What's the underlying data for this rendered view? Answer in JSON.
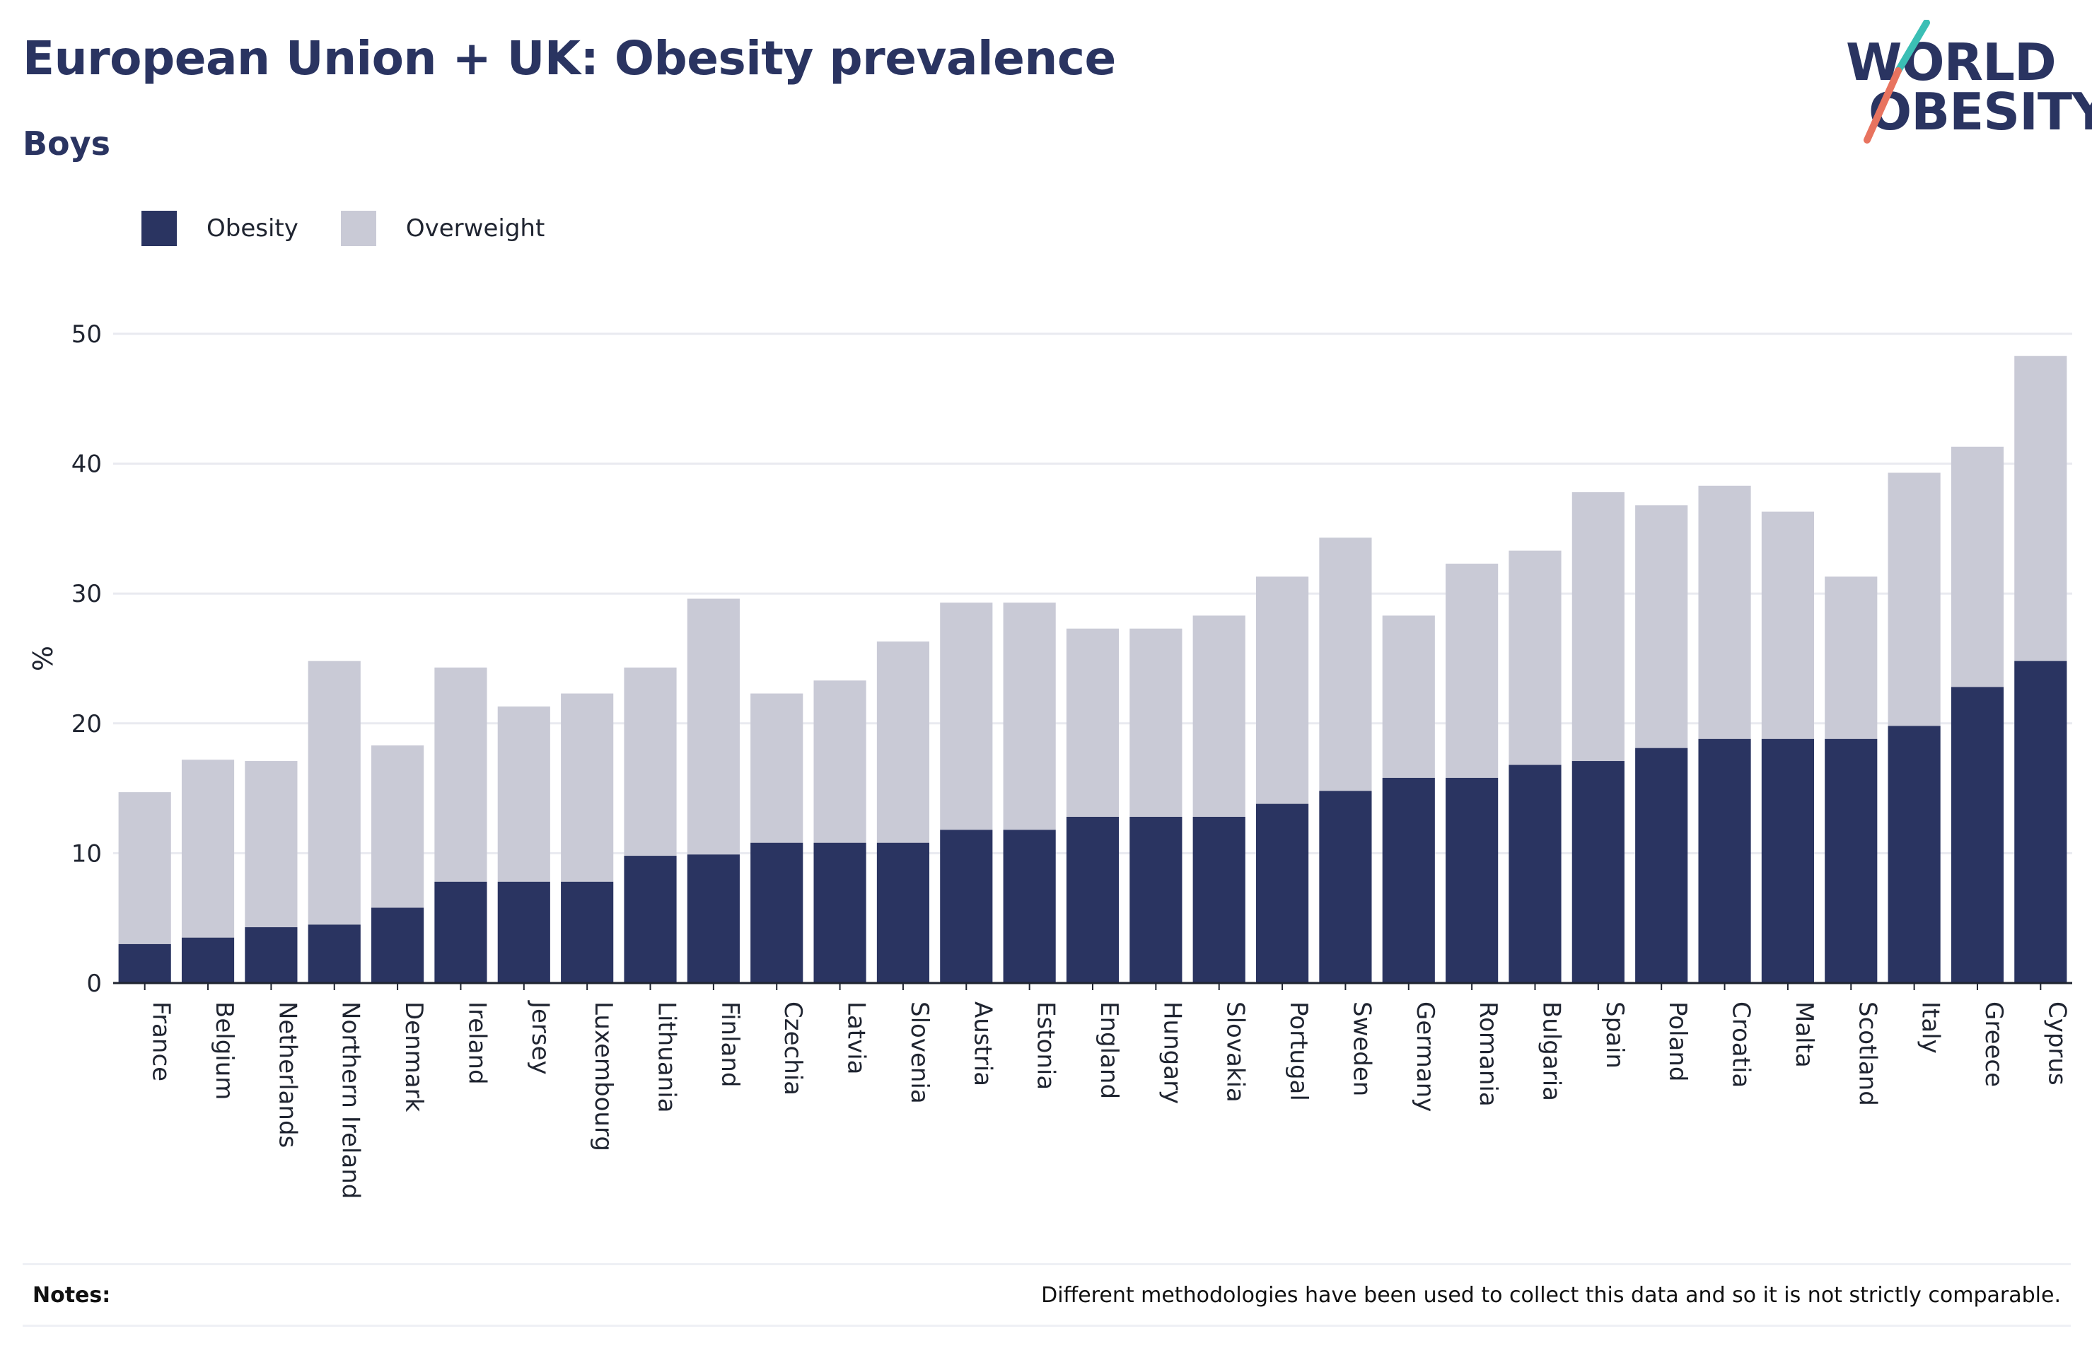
{
  "title": "European Union + UK: Obesity prevalence",
  "subtitle": "Boys",
  "logo": {
    "line1": "WORLD",
    "line2": "OBESITY",
    "accent_teal": "#3bbfb5",
    "accent_coral": "#e8735f"
  },
  "legend": [
    {
      "label": "Obesity",
      "color": "#2a3461"
    },
    {
      "label": "Overweight",
      "color": "#c9cad6"
    }
  ],
  "notes": {
    "label": "Notes:",
    "text": "Different methodologies have been used to collect this data and so it is not strictly comparable."
  },
  "chart_data": {
    "type": "bar",
    "stacked": true,
    "ylabel": "%",
    "xlabel": "",
    "ylim": [
      0,
      50
    ],
    "yticks": [
      0,
      10,
      20,
      30,
      40,
      50
    ],
    "grid": true,
    "legend_position": "top-left",
    "categories": [
      "France",
      "Belgium",
      "Netherlands",
      "Northern Ireland",
      "Denmark",
      "Ireland",
      "Jersey",
      "Luxembourg",
      "Lithuania",
      "Finland",
      "Czechia",
      "Latvia",
      "Slovenia",
      "Austria",
      "Estonia",
      "England",
      "Hungary",
      "Slovakia",
      "Portugal",
      "Sweden",
      "Germany",
      "Romania",
      "Bulgaria",
      "Spain",
      "Poland",
      "Croatia",
      "Malta",
      "Scotland",
      "Italy",
      "Greece",
      "Cyprus"
    ],
    "series": [
      {
        "name": "Obesity",
        "color": "#2a3461",
        "values": [
          3.0,
          3.5,
          4.3,
          4.5,
          5.8,
          7.8,
          7.8,
          7.8,
          9.8,
          9.9,
          10.8,
          10.8,
          10.8,
          11.8,
          11.8,
          12.8,
          12.8,
          12.8,
          13.8,
          14.8,
          15.8,
          15.8,
          16.8,
          17.1,
          18.1,
          18.8,
          18.8,
          18.8,
          19.8,
          22.8,
          24.8
        ]
      },
      {
        "name": "Overweight",
        "color": "#c9cad6",
        "values": [
          11.7,
          13.7,
          12.8,
          20.3,
          12.5,
          16.5,
          13.5,
          14.5,
          14.5,
          19.7,
          11.5,
          12.5,
          15.5,
          17.5,
          17.5,
          14.5,
          14.5,
          15.5,
          17.5,
          19.5,
          12.5,
          16.5,
          16.5,
          20.7,
          18.7,
          19.5,
          17.5,
          12.5,
          19.5,
          18.5,
          23.5
        ]
      }
    ]
  }
}
